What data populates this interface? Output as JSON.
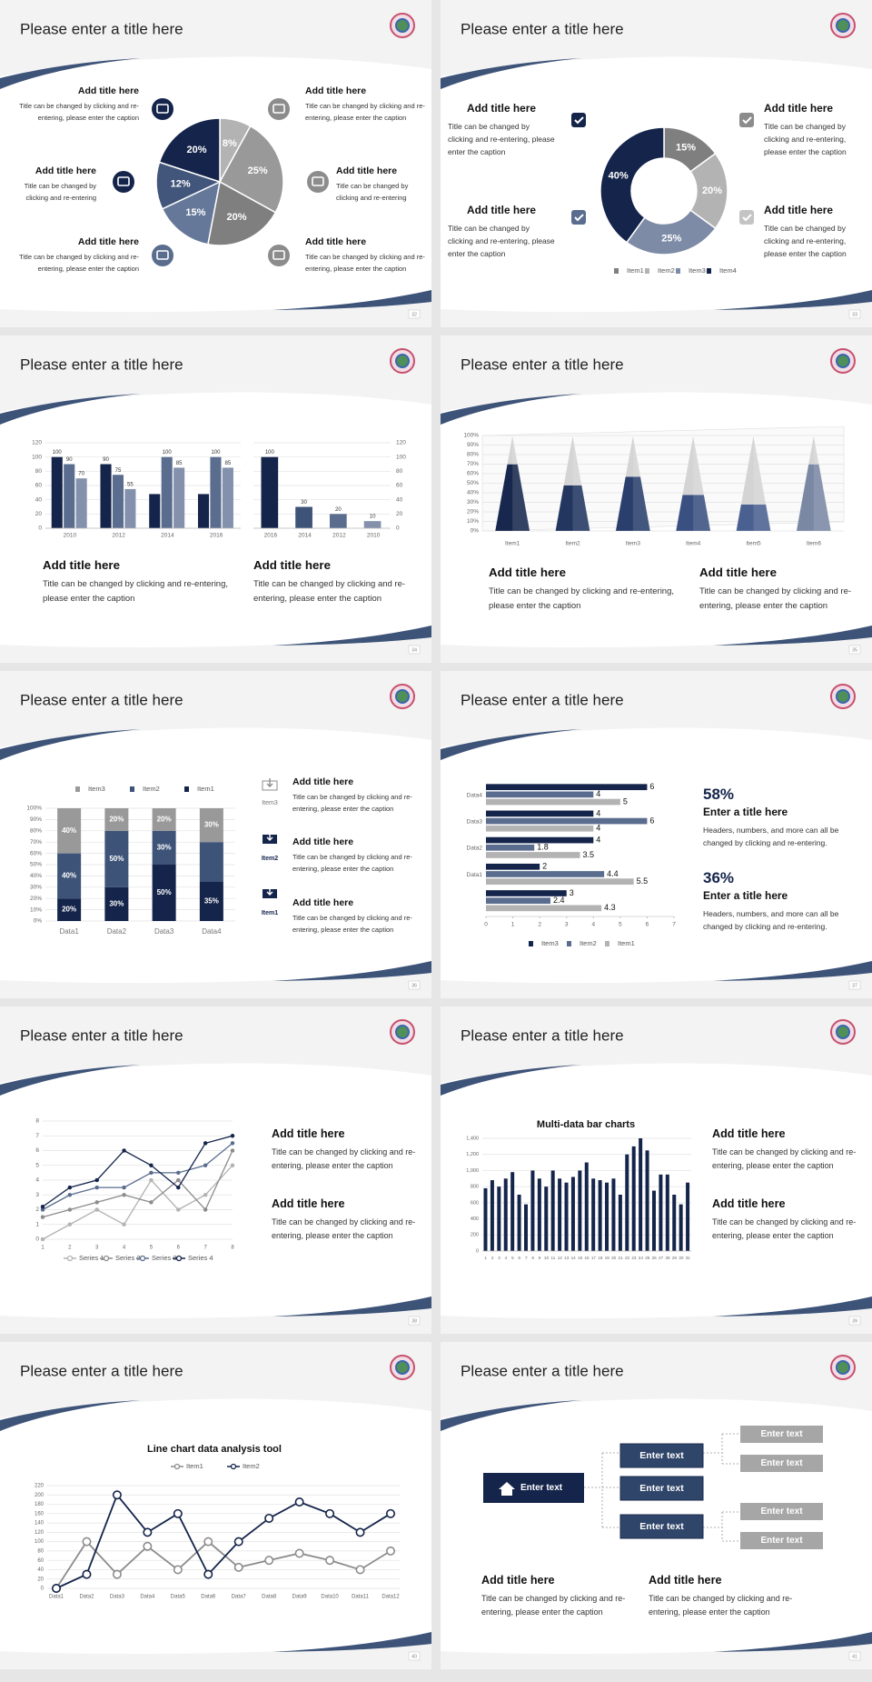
{
  "slides": [
    {
      "title": "Please enter a title here",
      "page": 32,
      "chart": {
        "type": "pie",
        "values": [
          8,
          25,
          20,
          15,
          12,
          20
        ],
        "value_labels": [
          "8%",
          "25%",
          "20%",
          "15%",
          "12%",
          "20%"
        ],
        "colors": [
          "#b3b3b3",
          "#999999",
          "#7f7f7f",
          "#65789a",
          "#42557a",
          "#14244a"
        ]
      },
      "blocks": [
        {
          "title": "Add title here",
          "caption": "Title can be changed by clicking and re-entering, please enter the caption"
        },
        {
          "title": "Add title here",
          "caption": "Title can be changed by clicking and re-entering, please enter the caption"
        },
        {
          "title": "Add title here",
          "caption": "Title can be changed by clicking and re-entering"
        },
        {
          "title": "Add title here",
          "caption": "Title can be changed by clicking and re-entering"
        },
        {
          "title": "Add title here",
          "caption": "Title can be changed by clicking and re-entering, please enter the caption"
        },
        {
          "title": "Add title here",
          "caption": "Title can be changed by clicking and re-entering, please enter the caption"
        }
      ]
    },
    {
      "title": "Please enter a title here",
      "page": 33,
      "chart": {
        "type": "donut",
        "categories": [
          "Item1",
          "Item2",
          "Item3",
          "Item4"
        ],
        "values": [
          15,
          20,
          25,
          40
        ],
        "value_labels": [
          "15%",
          "20%",
          "25%",
          "40%"
        ],
        "colors": [
          "#7f7f7f",
          "#b3b3b3",
          "#7d8ba6",
          "#14244a"
        ]
      },
      "blocks": [
        {
          "title": "Add title here",
          "caption": "Title can be changed by clicking and re-entering, please enter the caption"
        },
        {
          "title": "Add title here",
          "caption": "Title can be changed by clicking and re-entering, please enter the caption"
        },
        {
          "title": "Add title here",
          "caption": "Title can be changed by clicking and re-entering, please enter the caption"
        },
        {
          "title": "Add title here",
          "caption": "Title can be changed by clicking and re-entering, please enter the caption"
        }
      ]
    },
    {
      "title": "Please enter a title here",
      "page": 34,
      "charts": [
        {
          "type": "bar",
          "categories": [
            "2010",
            "2012",
            "2014",
            "2016"
          ],
          "series": [
            {
              "color": "#14244a",
              "values": [
                100,
                90,
                48,
                48
              ],
              "value_labels": [
                "100",
                "90",
                null,
                null
              ]
            },
            {
              "color": "#5a6d8f",
              "values": [
                90,
                75,
                100,
                100
              ],
              "value_labels": [
                "90",
                "75",
                "100",
                "100"
              ]
            },
            {
              "color": "#8391ad",
              "values": [
                70,
                55,
                85,
                85
              ],
              "value_labels": [
                "70",
                "55",
                "85",
                "85"
              ]
            }
          ],
          "ylim": [
            0,
            120
          ],
          "yticks": [
            0,
            20,
            40,
            60,
            80,
            100,
            120
          ]
        },
        {
          "type": "bar",
          "categories": [
            "2016",
            "2014",
            "2012",
            "2010"
          ],
          "values": [
            100,
            30,
            20,
            10
          ],
          "colors": [
            "#14244a",
            "#3d5378",
            "#5a6d8f",
            "#8391ad"
          ],
          "ylim": [
            0,
            120
          ],
          "yticks": [
            0,
            20,
            40,
            60,
            80,
            100,
            120
          ],
          "y_axis": "right"
        }
      ],
      "blocks": [
        {
          "title": "Add title here",
          "caption": "Title can be changed by clicking and re-entering, please enter the caption"
        },
        {
          "title": "Add title here",
          "caption": "Title can be changed by clicking and re-entering, please enter the caption"
        }
      ]
    },
    {
      "title": "Please enter a title here",
      "page": 35,
      "chart": {
        "type": "cone",
        "categories": [
          "Item1",
          "Item2",
          "Item3",
          "Item4",
          "Item5",
          "Item6"
        ],
        "series": [
          {
            "colors": [
              "#17274d",
              "#223660",
              "#2a3f6c",
              "#3a5080",
              "#4a6090",
              "#7a88a4"
            ],
            "values": [
              70,
              48,
              57,
              38,
              28,
              70
            ]
          },
          {
            "color": "#d4d4d4",
            "values": [
              30,
              52,
              43,
              62,
              72,
              30
            ]
          }
        ],
        "ylim": [
          0,
          100
        ],
        "yticks": [
          {
            "value": 0,
            "label": "0%"
          },
          {
            "value": 10,
            "label": "10%"
          },
          {
            "value": 20,
            "label": "20%"
          },
          {
            "value": 30,
            "label": "30%"
          },
          {
            "value": 40,
            "label": "40%"
          },
          {
            "value": 50,
            "label": "50%"
          },
          {
            "value": 60,
            "label": "60%"
          },
          {
            "value": 70,
            "label": "70%"
          },
          {
            "value": 80,
            "label": "80%"
          },
          {
            "value": 90,
            "label": "90%"
          },
          {
            "value": 100,
            "label": "100%"
          }
        ]
      },
      "blocks": [
        {
          "title": "Add title here",
          "caption": "Title can be changed by clicking and re-entering, please enter the caption"
        },
        {
          "title": "Add title here",
          "caption": "Title can be changed by clicking and re-entering, please enter the caption"
        }
      ]
    },
    {
      "title": "Please enter a title here",
      "page": 36,
      "chart": {
        "type": "stacked_bar",
        "categories": [
          "Data1",
          "Data2",
          "Data3",
          "Data4"
        ],
        "series": [
          {
            "name": "Item1",
            "color": "#14244a",
            "values": [
              20,
              30,
              50,
              35
            ],
            "value_labels": [
              "20%",
              "30%",
              "50%",
              "35%"
            ]
          },
          {
            "name": "Item2",
            "color": "#3d5378",
            "values": [
              40,
              50,
              30,
              35
            ],
            "value_labels": [
              "40%",
              "50%",
              "30%",
              null
            ]
          },
          {
            "name": "Item3",
            "color": "#999999",
            "values": [
              40,
              20,
              20,
              30
            ],
            "value_labels": [
              "40%",
              "20%",
              "20%",
              "30%"
            ]
          }
        ],
        "ylim": [
          0,
          100
        ],
        "yticks": [
          {
            "value": 0,
            "label": "0%"
          },
          {
            "value": 10,
            "label": "10%"
          },
          {
            "value": 20,
            "label": "20%"
          },
          {
            "value": 30,
            "label": "30%"
          },
          {
            "value": 40,
            "label": "40%"
          },
          {
            "value": 50,
            "label": "50%"
          },
          {
            "value": 60,
            "label": "60%"
          },
          {
            "value": 70,
            "label": "70%"
          },
          {
            "value": 80,
            "label": "80%"
          },
          {
            "value": 90,
            "label": "90%"
          },
          {
            "value": 100,
            "label": "100%"
          }
        ]
      },
      "blocks": [
        {
          "icon_label": "Item3",
          "title": "Add title here",
          "caption": "Title can be changed by clicking and re-entering, please enter the caption"
        },
        {
          "icon_label": "Item2",
          "title": "Add title here",
          "caption": "Title can be changed by clicking and re-entering, please enter the caption"
        },
        {
          "icon_label": "Item1",
          "title": "Add title here",
          "caption": "Title can be changed by clicking and re-entering, please enter the caption"
        }
      ]
    },
    {
      "title": "Please enter a title here",
      "page": 37,
      "chart": {
        "type": "hbar",
        "categories": [
          null,
          "Data1",
          "Data2",
          "Data3",
          "Data4"
        ],
        "series": [
          {
            "name": "Item3",
            "color": "#14244a",
            "values": [
              3,
              2,
              4,
              4,
              6
            ]
          },
          {
            "name": "Item2",
            "color": "#5a6d8f",
            "values": [
              2.4,
              4.4,
              1.8,
              6,
              4
            ]
          },
          {
            "name": "Item1",
            "color": "#b3b3b3",
            "values": [
              4.3,
              5.5,
              3.5,
              4,
              5
            ]
          }
        ],
        "xlim": [
          0,
          7
        ],
        "xticks": [
          0,
          1,
          2,
          3,
          4,
          5,
          6,
          7
        ]
      },
      "blocks": [
        {
          "figure": "58%",
          "title": "Enter a title here",
          "caption": "Headers, numbers, and more can all be changed by clicking and re-entering."
        },
        {
          "figure": "36%",
          "title": "Enter a title here",
          "caption": "Headers, numbers, and more can all be changed by clicking and re-entering."
        }
      ]
    },
    {
      "title": "Please enter a title here",
      "page": 38,
      "chart": {
        "type": "line",
        "x": [
          1,
          2,
          3,
          4,
          5,
          6,
          7,
          8
        ],
        "series": [
          {
            "name": "Series 1",
            "color": "#b3b3b3",
            "values": [
              0,
              1,
              2,
              1,
              4,
              2,
              3,
              5
            ]
          },
          {
            "name": "Series 2",
            "color": "#8c8c8c",
            "values": [
              1.5,
              2,
              2.5,
              3,
              2.5,
              4,
              2,
              6
            ]
          },
          {
            "name": "Series 3",
            "color": "#5a6d8f",
            "values": [
              2,
              3,
              3.5,
              3.5,
              4.5,
              4.5,
              5,
              6.5
            ]
          },
          {
            "name": "Series 4",
            "color": "#14244a",
            "values": [
              2.2,
              3.5,
              4,
              6,
              5,
              3.5,
              6.5,
              7
            ]
          }
        ],
        "xlim": [
          1,
          8
        ],
        "ylim": [
          0,
          8
        ],
        "yticks": [
          0,
          1,
          2,
          3,
          4,
          5,
          6,
          7,
          8
        ]
      },
      "blocks": [
        {
          "title": "Add title here",
          "caption": "Title can be changed by clicking and re-entering, please enter the caption"
        },
        {
          "title": "Add title here",
          "caption": "Title can be changed by clicking and re-entering, please enter the caption"
        }
      ]
    },
    {
      "title": "Please enter a title here",
      "page": 39,
      "chart": {
        "type": "bar",
        "title": "Multi-data bar charts",
        "color": "#14244a",
        "categories": [
          "1",
          "2",
          "3",
          "4",
          "5",
          "6",
          "7",
          "8",
          "9",
          "10",
          "11",
          "12",
          "13",
          "14",
          "15",
          "16",
          "17",
          "18",
          "19",
          "20",
          "21",
          "22",
          "23",
          "24",
          "25",
          "26",
          "27",
          "28",
          "29",
          "30",
          "31"
        ],
        "values": [
          780,
          880,
          800,
          900,
          980,
          700,
          580,
          1000,
          900,
          800,
          1000,
          900,
          850,
          920,
          1000,
          1100,
          900,
          880,
          850,
          900,
          700,
          1200,
          1300,
          1400,
          1250,
          750,
          950,
          950,
          700,
          580,
          850
        ],
        "ylim": [
          0,
          1400
        ],
        "yticks": [
          0,
          200,
          400,
          600,
          800,
          {
            "value": 1000,
            "label": "1,000"
          },
          {
            "value": 1200,
            "label": "1,200"
          },
          {
            "value": 1400,
            "label": "1,400"
          }
        ]
      },
      "blocks": [
        {
          "title": "Add title here",
          "caption": "Title can be changed by clicking and re-entering, please enter the caption"
        },
        {
          "title": "Add title here",
          "caption": "Title can be changed by clicking and re-entering, please enter the caption"
        }
      ]
    },
    {
      "title": "Please enter a title here",
      "page": 40,
      "chart": {
        "type": "line",
        "title": "Line chart data analysis tool",
        "markers": true,
        "categories": [
          "Data1",
          "Data2",
          "Data3",
          "Data4",
          "Data5",
          "Data6",
          "Data7",
          "Data8",
          "Data9",
          "Data10",
          "Data11",
          "Data12"
        ],
        "series": [
          {
            "name": "Item1",
            "color": "#8c8c8c",
            "values": [
              0,
              100,
              30,
              90,
              40,
              100,
              45,
              60,
              75,
              60,
              40,
              80
            ]
          },
          {
            "name": "Item2",
            "color": "#14244a",
            "values": [
              0,
              30,
              200,
              120,
              160,
              30,
              100,
              150,
              185,
              160,
              120,
              160
            ]
          }
        ],
        "ylim": [
          0,
          220
        ],
        "yticks": [
          0,
          20,
          40,
          60,
          80,
          100,
          120,
          140,
          160,
          180,
          200,
          220
        ]
      }
    },
    {
      "title": "Please enter a title here",
      "page": 41,
      "diagram": {
        "root": "Enter text",
        "branches": [
          "Enter text",
          "Enter text",
          "Enter text"
        ],
        "leaves": [
          "Enter text",
          "Enter text",
          "Enter text",
          "Enter text"
        ]
      },
      "blocks": [
        {
          "title": "Add title here",
          "caption": "Title can be changed by clicking and re-entering, please enter the caption"
        },
        {
          "title": "Add title here",
          "caption": "Title can be changed by clicking and re-entering, please enter the caption"
        }
      ]
    }
  ]
}
